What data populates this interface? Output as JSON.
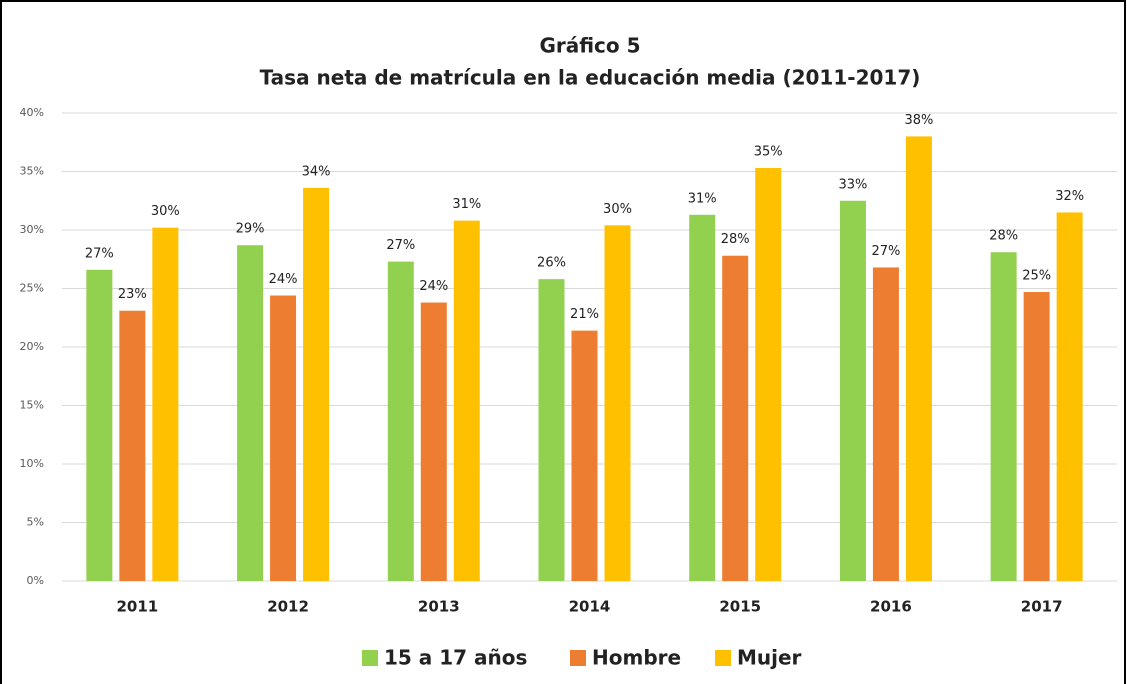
{
  "chart_data": {
    "type": "bar",
    "title": "Gráfico 5",
    "subtitle": "Tasa neta de matrícula en la educación media (2011-2017)",
    "categories": [
      "2011",
      "2012",
      "2013",
      "2014",
      "2015",
      "2016",
      "2017"
    ],
    "series": [
      {
        "name": "15 a 17 años",
        "color": "#92d050",
        "values": [
          26.6,
          28.7,
          27.3,
          25.8,
          31.3,
          32.5,
          28.1
        ],
        "value_labels": [
          "27%",
          "29%",
          "27%",
          "26%",
          "31%",
          "33%",
          "28%"
        ]
      },
      {
        "name": "Hombre",
        "color": "#ed7d31",
        "values": [
          23.1,
          24.4,
          23.8,
          21.4,
          27.8,
          26.8,
          24.7
        ],
        "value_labels": [
          "23%",
          "24%",
          "24%",
          "21%",
          "28%",
          "27%",
          "25%"
        ]
      },
      {
        "name": "Mujer",
        "color": "#ffc000",
        "values": [
          30.2,
          33.6,
          30.8,
          30.4,
          35.3,
          38.0,
          31.5
        ],
        "value_labels": [
          "30%",
          "34%",
          "31%",
          "30%",
          "35%",
          "38%",
          "32%"
        ]
      }
    ],
    "ylim": [
      0,
      40
    ],
    "yticks": [
      {
        "value": 0,
        "label": "0%"
      },
      {
        "value": 5,
        "label": "5%"
      },
      {
        "value": 10,
        "label": "10%"
      },
      {
        "value": 15,
        "label": "15%"
      },
      {
        "value": 20,
        "label": "20%"
      },
      {
        "value": 25,
        "label": "25%"
      },
      {
        "value": 30,
        "label": "30%"
      },
      {
        "value": 35,
        "label": "35%"
      },
      {
        "value": 40,
        "label": "40%"
      }
    ],
    "grid": true,
    "legend": "bottom"
  }
}
